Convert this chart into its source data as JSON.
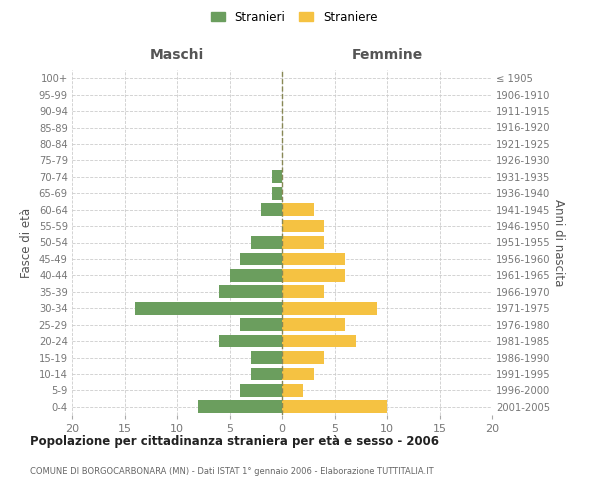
{
  "age_groups": [
    "0-4",
    "5-9",
    "10-14",
    "15-19",
    "20-24",
    "25-29",
    "30-34",
    "35-39",
    "40-44",
    "45-49",
    "50-54",
    "55-59",
    "60-64",
    "65-69",
    "70-74",
    "75-79",
    "80-84",
    "85-89",
    "90-94",
    "95-99",
    "100+"
  ],
  "birth_years": [
    "2001-2005",
    "1996-2000",
    "1991-1995",
    "1986-1990",
    "1981-1985",
    "1976-1980",
    "1971-1975",
    "1966-1970",
    "1961-1965",
    "1956-1960",
    "1951-1955",
    "1946-1950",
    "1941-1945",
    "1936-1940",
    "1931-1935",
    "1926-1930",
    "1921-1925",
    "1916-1920",
    "1911-1915",
    "1906-1910",
    "≤ 1905"
  ],
  "maschi": [
    8,
    4,
    3,
    3,
    6,
    4,
    14,
    6,
    5,
    4,
    3,
    0,
    2,
    1,
    1,
    0,
    0,
    0,
    0,
    0,
    0
  ],
  "femmine": [
    10,
    2,
    3,
    4,
    7,
    6,
    9,
    4,
    6,
    6,
    4,
    4,
    3,
    0,
    0,
    0,
    0,
    0,
    0,
    0,
    0
  ],
  "maschi_color": "#6b9e5e",
  "femmine_color": "#f5c242",
  "title": "Popolazione per cittadinanza straniera per età e sesso - 2006",
  "subtitle": "COMUNE DI BORGOCARBONARA (MN) - Dati ISTAT 1° gennaio 2006 - Elaborazione TUTTITALIA.IT",
  "ylabel_left": "Fasce di età",
  "ylabel_right": "Anni di nascita",
  "xlabel_maschi": "Maschi",
  "xlabel_femmine": "Femmine",
  "legend_maschi": "Stranieri",
  "legend_femmine": "Straniere",
  "xlim": 20,
  "background_color": "#ffffff",
  "grid_color": "#cccccc"
}
